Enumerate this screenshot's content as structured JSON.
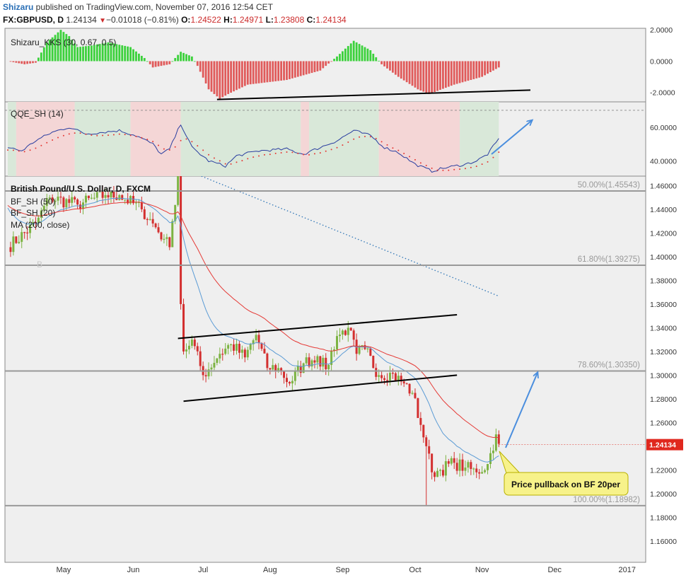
{
  "header": {
    "username": "Shizaru",
    "published_text": " published on TradingView.com, November 07, 2016 12:54 CET",
    "symbol": "FX:GBPUSD, D",
    "last": "1.24134",
    "change": "−0.01018 (−0.81%)",
    "o_label": "O:",
    "o_value": "1.24522",
    "h_label": "H:",
    "h_value": "1.24971",
    "l_label": "L:",
    "l_value": "1.23808",
    "c_label": "C:",
    "c_value": "1.24134"
  },
  "colors": {
    "bull": "#7cb342",
    "bear": "#d32f2f",
    "bf50": "#e53935",
    "bf20": "#5b9bd5",
    "ma200": "#2e75b6",
    "kks_pos": "#3bd13b",
    "kks_neg": "#e05a5a",
    "qqe_line": "#2a3ea0",
    "qqe_trail": "#e53935",
    "bg_red": "#f4d6d6",
    "bg_green": "#d9e8d9",
    "arrow": "#4a8ede"
  },
  "panels": {
    "kks": {
      "title": "Shizaru_KKS (30, 0.67, 0.5)",
      "ylim": [
        -2.6,
        2.1
      ],
      "ticks": [
        "2.0000",
        "0.0000",
        "-2.0000"
      ],
      "tick_values": [
        2,
        0,
        -2
      ]
    },
    "qqe": {
      "title": "QQE_SH (14)",
      "ylim": [
        31,
        75
      ],
      "ticks": [
        "60.0000",
        "40.0000"
      ],
      "tick_values": [
        60,
        40
      ],
      "dotted_levels": [
        70,
        30
      ]
    },
    "main": {
      "title": "British Pound/U.S. Dollar, D, FXCM",
      "legend": [
        "BF_SH (50)",
        "BF_SH (20)",
        "MA (200, close)"
      ],
      "marker_b": "B",
      "annotation": "Price pullback on BF 20per",
      "price_label": "1.24134"
    }
  },
  "chart_data": {
    "type": "candlestick",
    "symbol": "FX:GBPUSD",
    "timeframe": "D",
    "y_ticks": [
      "1.46000",
      "1.44000",
      "1.42000",
      "1.40000",
      "1.38000",
      "1.36000",
      "1.34000",
      "1.32000",
      "1.30000",
      "1.28000",
      "1.26000",
      "1.24000",
      "1.22000",
      "1.20000",
      "1.18000",
      "1.16000"
    ],
    "y_tick_values": [
      1.46,
      1.44,
      1.42,
      1.4,
      1.38,
      1.36,
      1.34,
      1.32,
      1.3,
      1.28,
      1.26,
      1.24,
      1.22,
      1.2,
      1.18,
      1.16
    ],
    "ylim": [
      1.142,
      1.468
    ],
    "x_labels": [
      "May",
      "Jun",
      "Jul",
      "Aug",
      "Sep",
      "Oct",
      "Nov",
      "Dec",
      "2017"
    ],
    "fib_levels": [
      {
        "label": "50.00%(1.45543)",
        "value": 1.45543
      },
      {
        "label": "61.80%(1.39275)",
        "value": 1.39275
      },
      {
        "label": "78.60%(1.30350)",
        "value": 1.3035
      },
      {
        "label": "100.00%(1.18982)",
        "value": 1.18982
      }
    ],
    "waypoints": [
      [
        0,
        1.408
      ],
      [
        10,
        1.428
      ],
      [
        15,
        1.45
      ],
      [
        25,
        1.444
      ],
      [
        35,
        1.452
      ],
      [
        40,
        1.452
      ],
      [
        48,
        1.44
      ],
      [
        52,
        1.428
      ],
      [
        56,
        1.415
      ],
      [
        58,
        1.408
      ],
      [
        59,
        1.43
      ],
      [
        61,
        1.468
      ],
      [
        62,
        1.36
      ],
      [
        63,
        1.32
      ],
      [
        66,
        1.33
      ],
      [
        70,
        1.3
      ],
      [
        76,
        1.318
      ],
      [
        80,
        1.326
      ],
      [
        85,
        1.315
      ],
      [
        89,
        1.334
      ],
      [
        93,
        1.306
      ],
      [
        97,
        1.306
      ],
      [
        101,
        1.293
      ],
      [
        106,
        1.31
      ],
      [
        111,
        1.316
      ],
      [
        114,
        1.305
      ],
      [
        118,
        1.333
      ],
      [
        122,
        1.34
      ],
      [
        125,
        1.318
      ],
      [
        128,
        1.322
      ],
      [
        133,
        1.3
      ],
      [
        137,
        1.302
      ],
      [
        142,
        1.293
      ],
      [
        145,
        1.285
      ],
      [
        148,
        1.258
      ],
      [
        150,
        1.24
      ],
      [
        152,
        1.218
      ],
      [
        155,
        1.22
      ],
      [
        160,
        1.226
      ],
      [
        164,
        1.222
      ],
      [
        168,
        1.218
      ],
      [
        172,
        1.225
      ],
      [
        175,
        1.25
      ],
      [
        176,
        1.242
      ]
    ],
    "spikes": [
      {
        "day": 62,
        "high": 1.5
      },
      {
        "day": 150,
        "low": 1.19
      }
    ],
    "trendlines": [
      {
        "name": "upper channel",
        "from": [
          61,
          1.331
        ],
        "to": [
          161,
          1.351
        ]
      },
      {
        "name": "lower channel",
        "from": [
          63,
          1.278
        ],
        "to": [
          161,
          1.3
        ]
      }
    ],
    "last_price": 1.24134
  }
}
